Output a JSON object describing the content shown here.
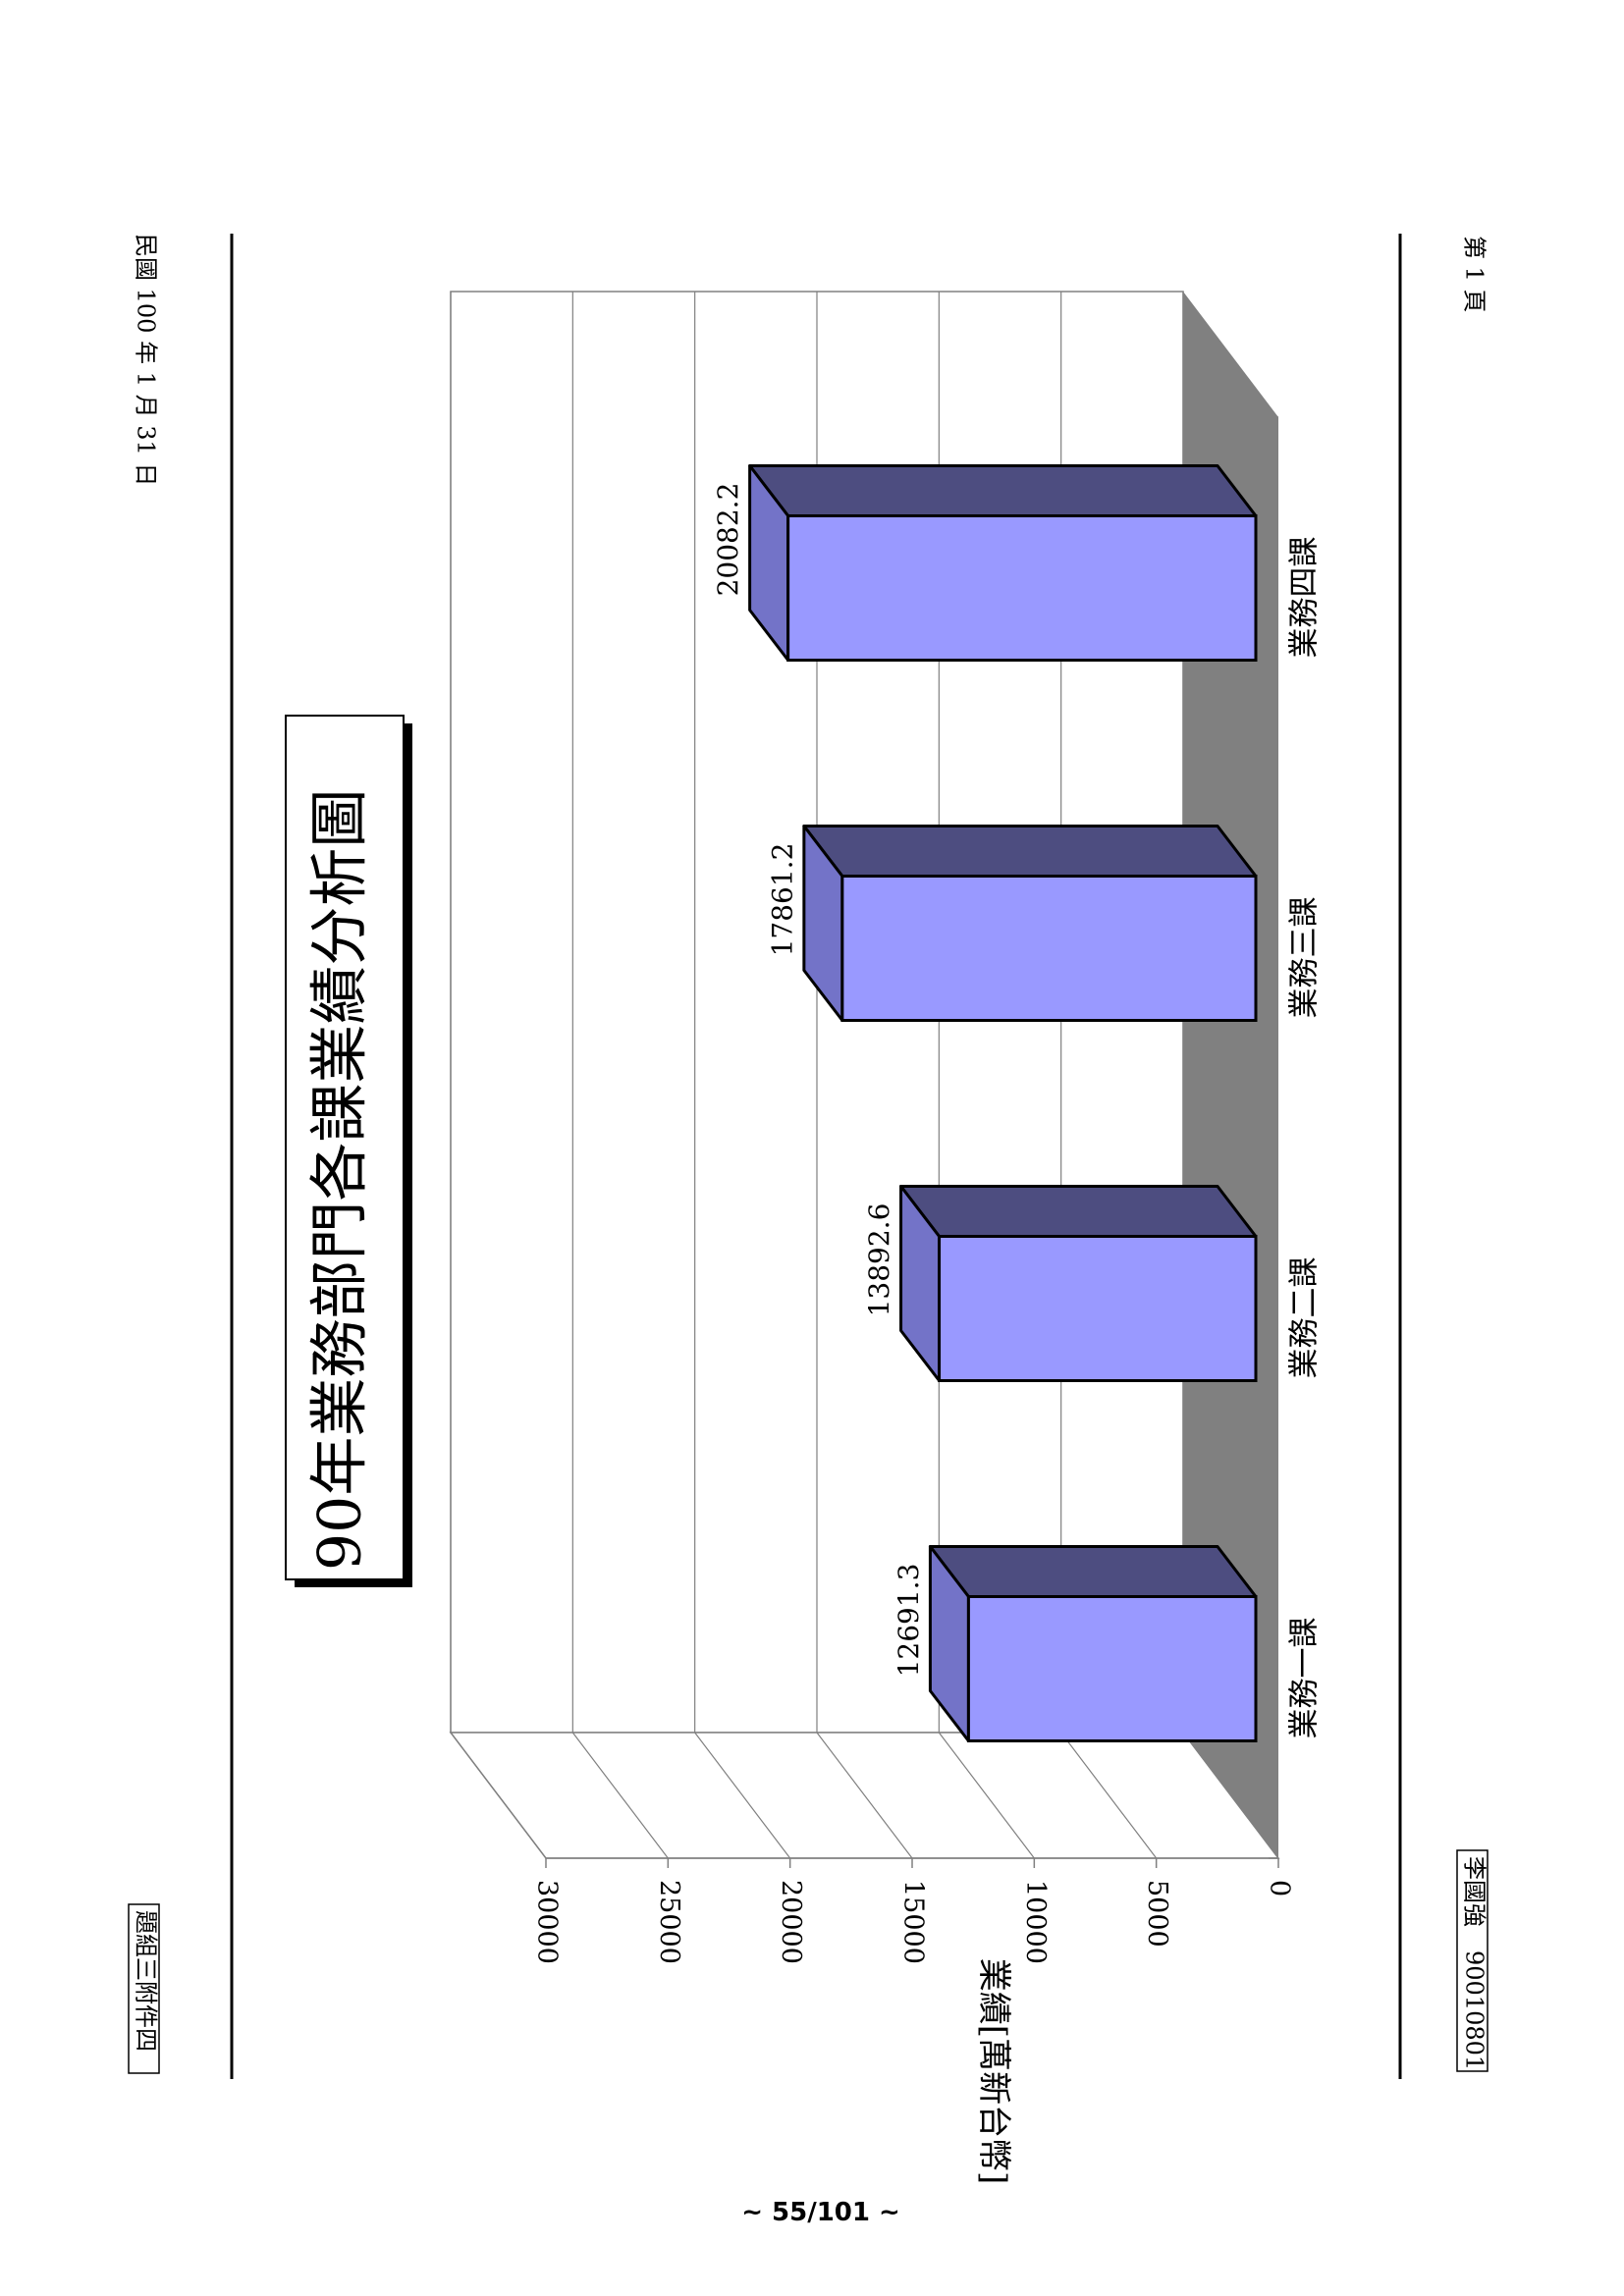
{
  "header": {
    "date": "民國 100 年 1 月 31 日",
    "attachment_label": "題組三附件四"
  },
  "footer": {
    "page_label": "第 1 頁",
    "author_id": "李國強　90010801",
    "page_number": "~ 55/101 ~"
  },
  "colors": {
    "bar_front": "#9999ff",
    "bar_top": "#4d4d80",
    "bar_side": "#7373c8",
    "floor": "#808080"
  },
  "chart_data": {
    "type": "bar",
    "title": "90年業務部門各課業績分析圖",
    "xlabel": "",
    "ylabel": "業績[萬新台幣]",
    "categories": [
      "業務一課",
      "業務二課",
      "業務三課",
      "業務四課"
    ],
    "values": [
      12691.3,
      13892.6,
      17861.2,
      20082.2
    ],
    "value_labels": [
      "12691.3",
      "13892.6",
      "17861.2",
      "20082.2"
    ],
    "ylim": [
      0,
      30000
    ],
    "yticks": [
      0,
      5000,
      10000,
      15000,
      20000,
      25000,
      30000
    ],
    "ytick_labels": [
      "0",
      "5000",
      "10000",
      "15000",
      "20000",
      "25000",
      "30000"
    ],
    "grid": true,
    "orientation": "page rotated 90° clockwise"
  }
}
